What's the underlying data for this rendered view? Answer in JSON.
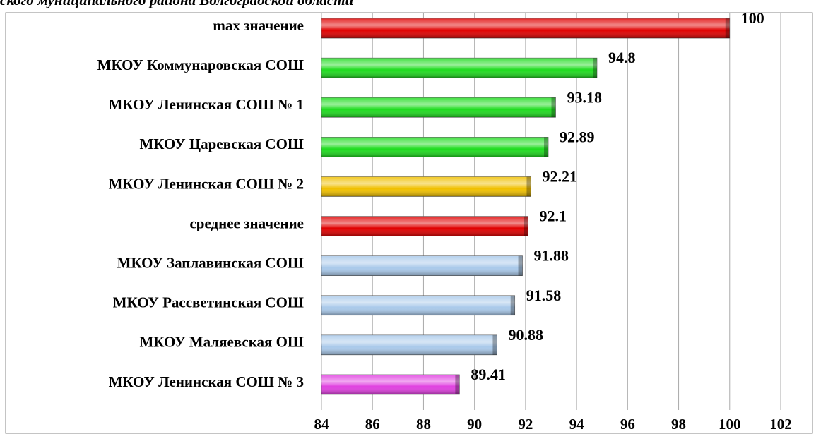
{
  "chart_data": {
    "type": "bar",
    "orientation": "horizontal",
    "title": "ского муниципального района Волгоградской области",
    "categories": [
      "max значение",
      "МКОУ Коммунаровская СОШ",
      "МКОУ Ленинская СОШ № 1",
      "МКОУ Царевская СОШ",
      "МКОУ Ленинская СОШ № 2",
      "среднее значение",
      "МКОУ Заплавинская СОШ",
      "МКОУ Рассветинская СОШ",
      "МКОУ Маляевская ОШ",
      "МКОУ Ленинская СОШ № 3"
    ],
    "values": [
      100,
      94.8,
      93.18,
      92.89,
      92.21,
      92.1,
      91.88,
      91.58,
      90.88,
      89.41
    ],
    "colors": [
      "#e00000",
      "#1fdc1f",
      "#1fdc1f",
      "#1fdc1f",
      "#f0c000",
      "#e00000",
      "#a9c9ea",
      "#a9c9ea",
      "#a9c9ea",
      "#e040e0"
    ],
    "label_colors": [
      "#000000",
      "#000000",
      "#000000",
      "#000000",
      "#000000",
      "#e00000",
      "#000000",
      "#000000",
      "#000000",
      "#000000"
    ],
    "xlim": [
      84,
      102
    ],
    "xticks": [
      84,
      86,
      88,
      90,
      92,
      94,
      96,
      98,
      100,
      102
    ],
    "grid": true
  }
}
